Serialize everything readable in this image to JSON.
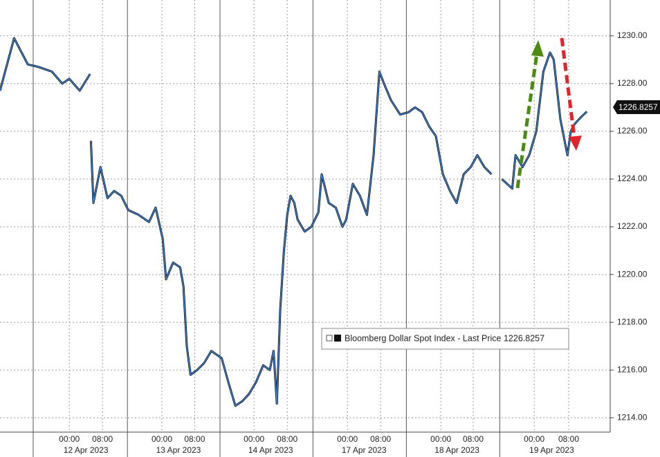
{
  "chart_data": {
    "type": "line",
    "series": [
      {
        "name": "Bloomberg Dollar Spot Index - Last Price 1226.8257",
        "color": "#3b82d6",
        "x": [
          -16.7,
          -13.3,
          -10,
          -7.5,
          -4.2,
          -1.7,
          0,
          2.5,
          5,
          5.1,
          5.2,
          5.8,
          7.5,
          9.2,
          10.8,
          12.5,
          14.2,
          16.7,
          19.2,
          20.8,
          22.5,
          23.3,
          25,
          26.7,
          27.5,
          28.3,
          29.2,
          30.8,
          32.5,
          34.2,
          36.7,
          38.3,
          40,
          41.7,
          43.3,
          45,
          46.7,
          48.3,
          49.2,
          50,
          50.8,
          51.7,
          52.5,
          53.3,
          54.2,
          55,
          56.7,
          58.3,
          60,
          60.8,
          62.5,
          64.2,
          65.8,
          66.7,
          68.3,
          70,
          71.7,
          73.3,
          74.7,
          75.8,
          77.5,
          79.7,
          81.7,
          83.3,
          85,
          86.7,
          88.3,
          90,
          91.7,
          93.3,
          95,
          96.7,
          98.3,
          100,
          101.7,
          103,
          104.2,
          106.7,
          107.5,
          109.2,
          110.8,
          112.5,
          114.2,
          115.8,
          116.7,
          118.3,
          120,
          120.8,
          121.7,
          123.3,
          124.7
        ],
        "values": [
          1227.7,
          1229.9,
          1228.8,
          1228.7,
          1228.5,
          1228.0,
          1228.2,
          1227.7,
          1228.4,
          null,
          1225.6,
          1223.0,
          1224.5,
          1223.2,
          1223.5,
          1223.3,
          1222.7,
          1222.5,
          1222.2,
          1222.8,
          1221.5,
          1219.8,
          1220.5,
          1220.3,
          1219.5,
          1217.0,
          1215.8,
          1216.0,
          1216.3,
          1216.8,
          1216.5,
          1215.5,
          1214.5,
          1214.7,
          1215.0,
          1215.5,
          1216.2,
          1216.0,
          1216.8,
          1214.6,
          1218.5,
          1221.0,
          1222.5,
          1223.3,
          1223.0,
          1222.3,
          1221.8,
          1222.0,
          1222.6,
          1224.2,
          1223.0,
          1222.8,
          1222.0,
          1222.3,
          1223.8,
          1223.3,
          1222.5,
          1225.0,
          1228.5,
          1228.0,
          1227.3,
          1226.7,
          1226.8,
          1227.0,
          1226.8,
          1226.2,
          1225.8,
          1224.2,
          1223.5,
          1223.0,
          1224.2,
          1224.5,
          1225.0,
          1224.5,
          1224.2,
          null,
          1224.0,
          1223.6,
          1225.0,
          1224.5,
          1225.0,
          1226.0,
          1228.5,
          1229.3,
          1229.0,
          1226.5,
          1225.0,
          1226.0,
          1226.3,
          1226.6,
          1226.8257
        ]
      }
    ],
    "xlim": [
      -16.7,
      130.3
    ],
    "xticks": [
      {
        "value": 0,
        "label": "00:00"
      },
      {
        "value": 8,
        "label": "08:00"
      },
      {
        "value": 22.3,
        "label": "00:00"
      },
      {
        "value": 30.2,
        "label": "08:00"
      },
      {
        "value": 44.5,
        "label": "00:00"
      },
      {
        "value": 52.5,
        "label": "08:00"
      },
      {
        "value": 67,
        "label": "00:00"
      },
      {
        "value": 75,
        "label": "08:00"
      },
      {
        "value": 89.5,
        "label": "00:00"
      },
      {
        "value": 97.3,
        "label": "08:00"
      },
      {
        "value": 112,
        "label": "00:00"
      },
      {
        "value": 120.3,
        "label": "08:00"
      }
    ],
    "date_labels": [
      {
        "value": 4,
        "label": "12 Apr 2023"
      },
      {
        "value": 26.3,
        "label": "13 Apr 2023"
      },
      {
        "value": 48.5,
        "label": "14 Apr 2023"
      },
      {
        "value": 71,
        "label": "17 Apr 2023"
      },
      {
        "value": 93.4,
        "label": "18 Apr 2023"
      },
      {
        "value": 116.2,
        "label": "19 Apr 2023"
      }
    ],
    "session_breaks": [
      -8.7,
      14,
      36.3,
      58.7,
      81.2,
      103.7
    ],
    "ylim": [
      1213.4,
      1231.5
    ],
    "yticks": [
      {
        "value": 1214,
        "label": "1214.00"
      },
      {
        "value": 1216,
        "label": "1216.00"
      },
      {
        "value": 1218,
        "label": "1218.00"
      },
      {
        "value": 1220,
        "label": "1220.00"
      },
      {
        "value": 1222,
        "label": "1222.00"
      },
      {
        "value": 1224,
        "label": "1224.00"
      },
      {
        "value": 1226,
        "label": "1226.00"
      },
      {
        "value": 1228,
        "label": "1228.00"
      },
      {
        "value": 1230,
        "label": "1230.00"
      }
    ],
    "grid": true
  }
}
